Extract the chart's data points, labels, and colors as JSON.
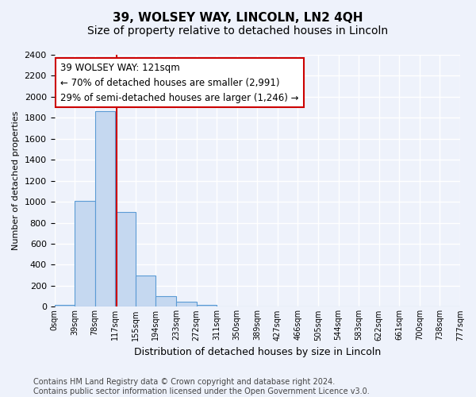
{
  "title": "39, WOLSEY WAY, LINCOLN, LN2 4QH",
  "subtitle": "Size of property relative to detached houses in Lincoln",
  "xlabel": "Distribution of detached houses by size in Lincoln",
  "ylabel": "Number of detached properties",
  "bin_labels": [
    "0sqm",
    "39sqm",
    "78sqm",
    "117sqm",
    "155sqm",
    "194sqm",
    "233sqm",
    "272sqm",
    "311sqm",
    "350sqm",
    "389sqm",
    "427sqm",
    "466sqm",
    "505sqm",
    "544sqm",
    "583sqm",
    "622sqm",
    "661sqm",
    "700sqm",
    "738sqm",
    "777sqm"
  ],
  "bar_values": [
    20,
    1010,
    1860,
    900,
    300,
    105,
    45,
    20,
    0,
    0,
    0,
    0,
    0,
    0,
    0,
    0,
    0,
    0,
    0,
    0
  ],
  "bar_color": "#c5d8f0",
  "bar_edge_color": "#5b9bd5",
  "background_color": "#eef2fb",
  "grid_color": "#ffffff",
  "ylim": [
    0,
    2400
  ],
  "yticks": [
    0,
    200,
    400,
    600,
    800,
    1000,
    1200,
    1400,
    1600,
    1800,
    2000,
    2200,
    2400
  ],
  "property_line_x": 3.08,
  "property_line_color": "#cc0000",
  "annotation_text": "39 WOLSEY WAY: 121sqm\n← 70% of detached houses are smaller (2,991)\n29% of semi-detached houses are larger (1,246) →",
  "annotation_box_color": "#ffffff",
  "annotation_box_edgecolor": "#cc0000",
  "footer_text": "Contains HM Land Registry data © Crown copyright and database right 2024.\nContains public sector information licensed under the Open Government Licence v3.0.",
  "title_fontsize": 11,
  "subtitle_fontsize": 10,
  "annotation_fontsize": 8.5,
  "footer_fontsize": 7
}
